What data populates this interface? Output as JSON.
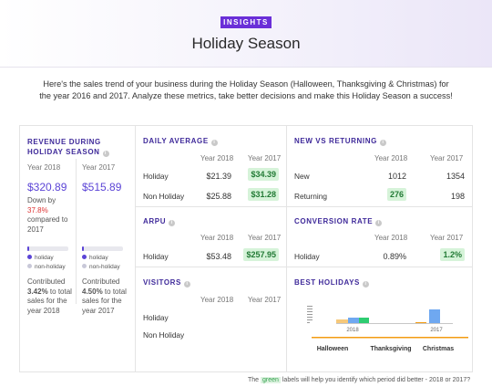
{
  "header": {
    "badge": "INSIGHTS",
    "title": "Holiday Season"
  },
  "intro": "Here's the sales trend of your business during the Holiday Season (Halloween, Thanksgiving & Christmas) for the year 2016 and 2017. Analyze these metrics, take better decisions and make this Holiday Season a success!",
  "revenue": {
    "title": "REVENUE DURING HOLIDAY SEASON",
    "y2018": {
      "label": "Year 2018",
      "value": "$320.89",
      "down_prefix": "Down by",
      "down_pct": "37.8%",
      "down_suffix": "compared to 2017",
      "holiday_share": 0.0342,
      "legend_holiday": "holiday",
      "legend_non": "non-holiday",
      "contrib_prefix": "Contributed",
      "contrib_pct": "3.42%",
      "contrib_suffix": "to total sales for the year 2018"
    },
    "y2017": {
      "label": "Year 2017",
      "value": "$515.89",
      "holiday_share": 0.045,
      "legend_holiday": "holiday",
      "legend_non": "non-holiday",
      "contrib_prefix": "Contributed",
      "contrib_pct": "4.50%",
      "contrib_suffix": "to total sales for the year 2017"
    }
  },
  "daily_average": {
    "title": "DAILY AVERAGE",
    "col1": "Year 2018",
    "col2": "Year 2017",
    "rows": [
      {
        "label": "Holiday",
        "v2018": "$21.39",
        "v2017": "$34.39"
      },
      {
        "label": "Non Holiday",
        "v2018": "$25.88",
        "v2017": "$31.28"
      }
    ]
  },
  "new_vs_returning": {
    "title": "NEW VS RETURNING",
    "col1": "Year 2018",
    "col2": "Year 2017",
    "rows": [
      {
        "label": "New",
        "v2018": "1012",
        "v2017": "1354"
      },
      {
        "label": "Returning",
        "v2018": "276",
        "v2017": "198"
      }
    ]
  },
  "arpu": {
    "title": "ARPU",
    "col1": "Year 2018",
    "col2": "Year 2017",
    "rows": [
      {
        "label": "Holiday",
        "v2018": "$53.48",
        "v2017": "$257.95"
      }
    ]
  },
  "conversion_rate": {
    "title": "CONVERSION RATE",
    "col1": "Year 2018",
    "col2": "Year 2017",
    "rows": [
      {
        "label": "Holiday",
        "v2018": "0.89%",
        "v2017": "1.2%"
      }
    ]
  },
  "visitors": {
    "title": "VISITORS",
    "col1": "Year 2018",
    "col2": "Year 2017",
    "rows": [
      {
        "label": "Holiday"
      },
      {
        "label": "Non Holiday"
      }
    ]
  },
  "best_holidays": {
    "title": "BEST HOLIDAYS",
    "year1": "2018",
    "year2": "2017",
    "holidays": [
      "Halloween",
      "Thanksgiving",
      "Christmas"
    ],
    "colors": {
      "halloween": "#f39c12",
      "thanksgiving": "#2ecc71",
      "christmas": "#6fa8f0"
    }
  },
  "footer": {
    "prefix": "The",
    "green": "green",
    "suffix": "labels will help you identify which period did better - 2018 or 2017?"
  }
}
